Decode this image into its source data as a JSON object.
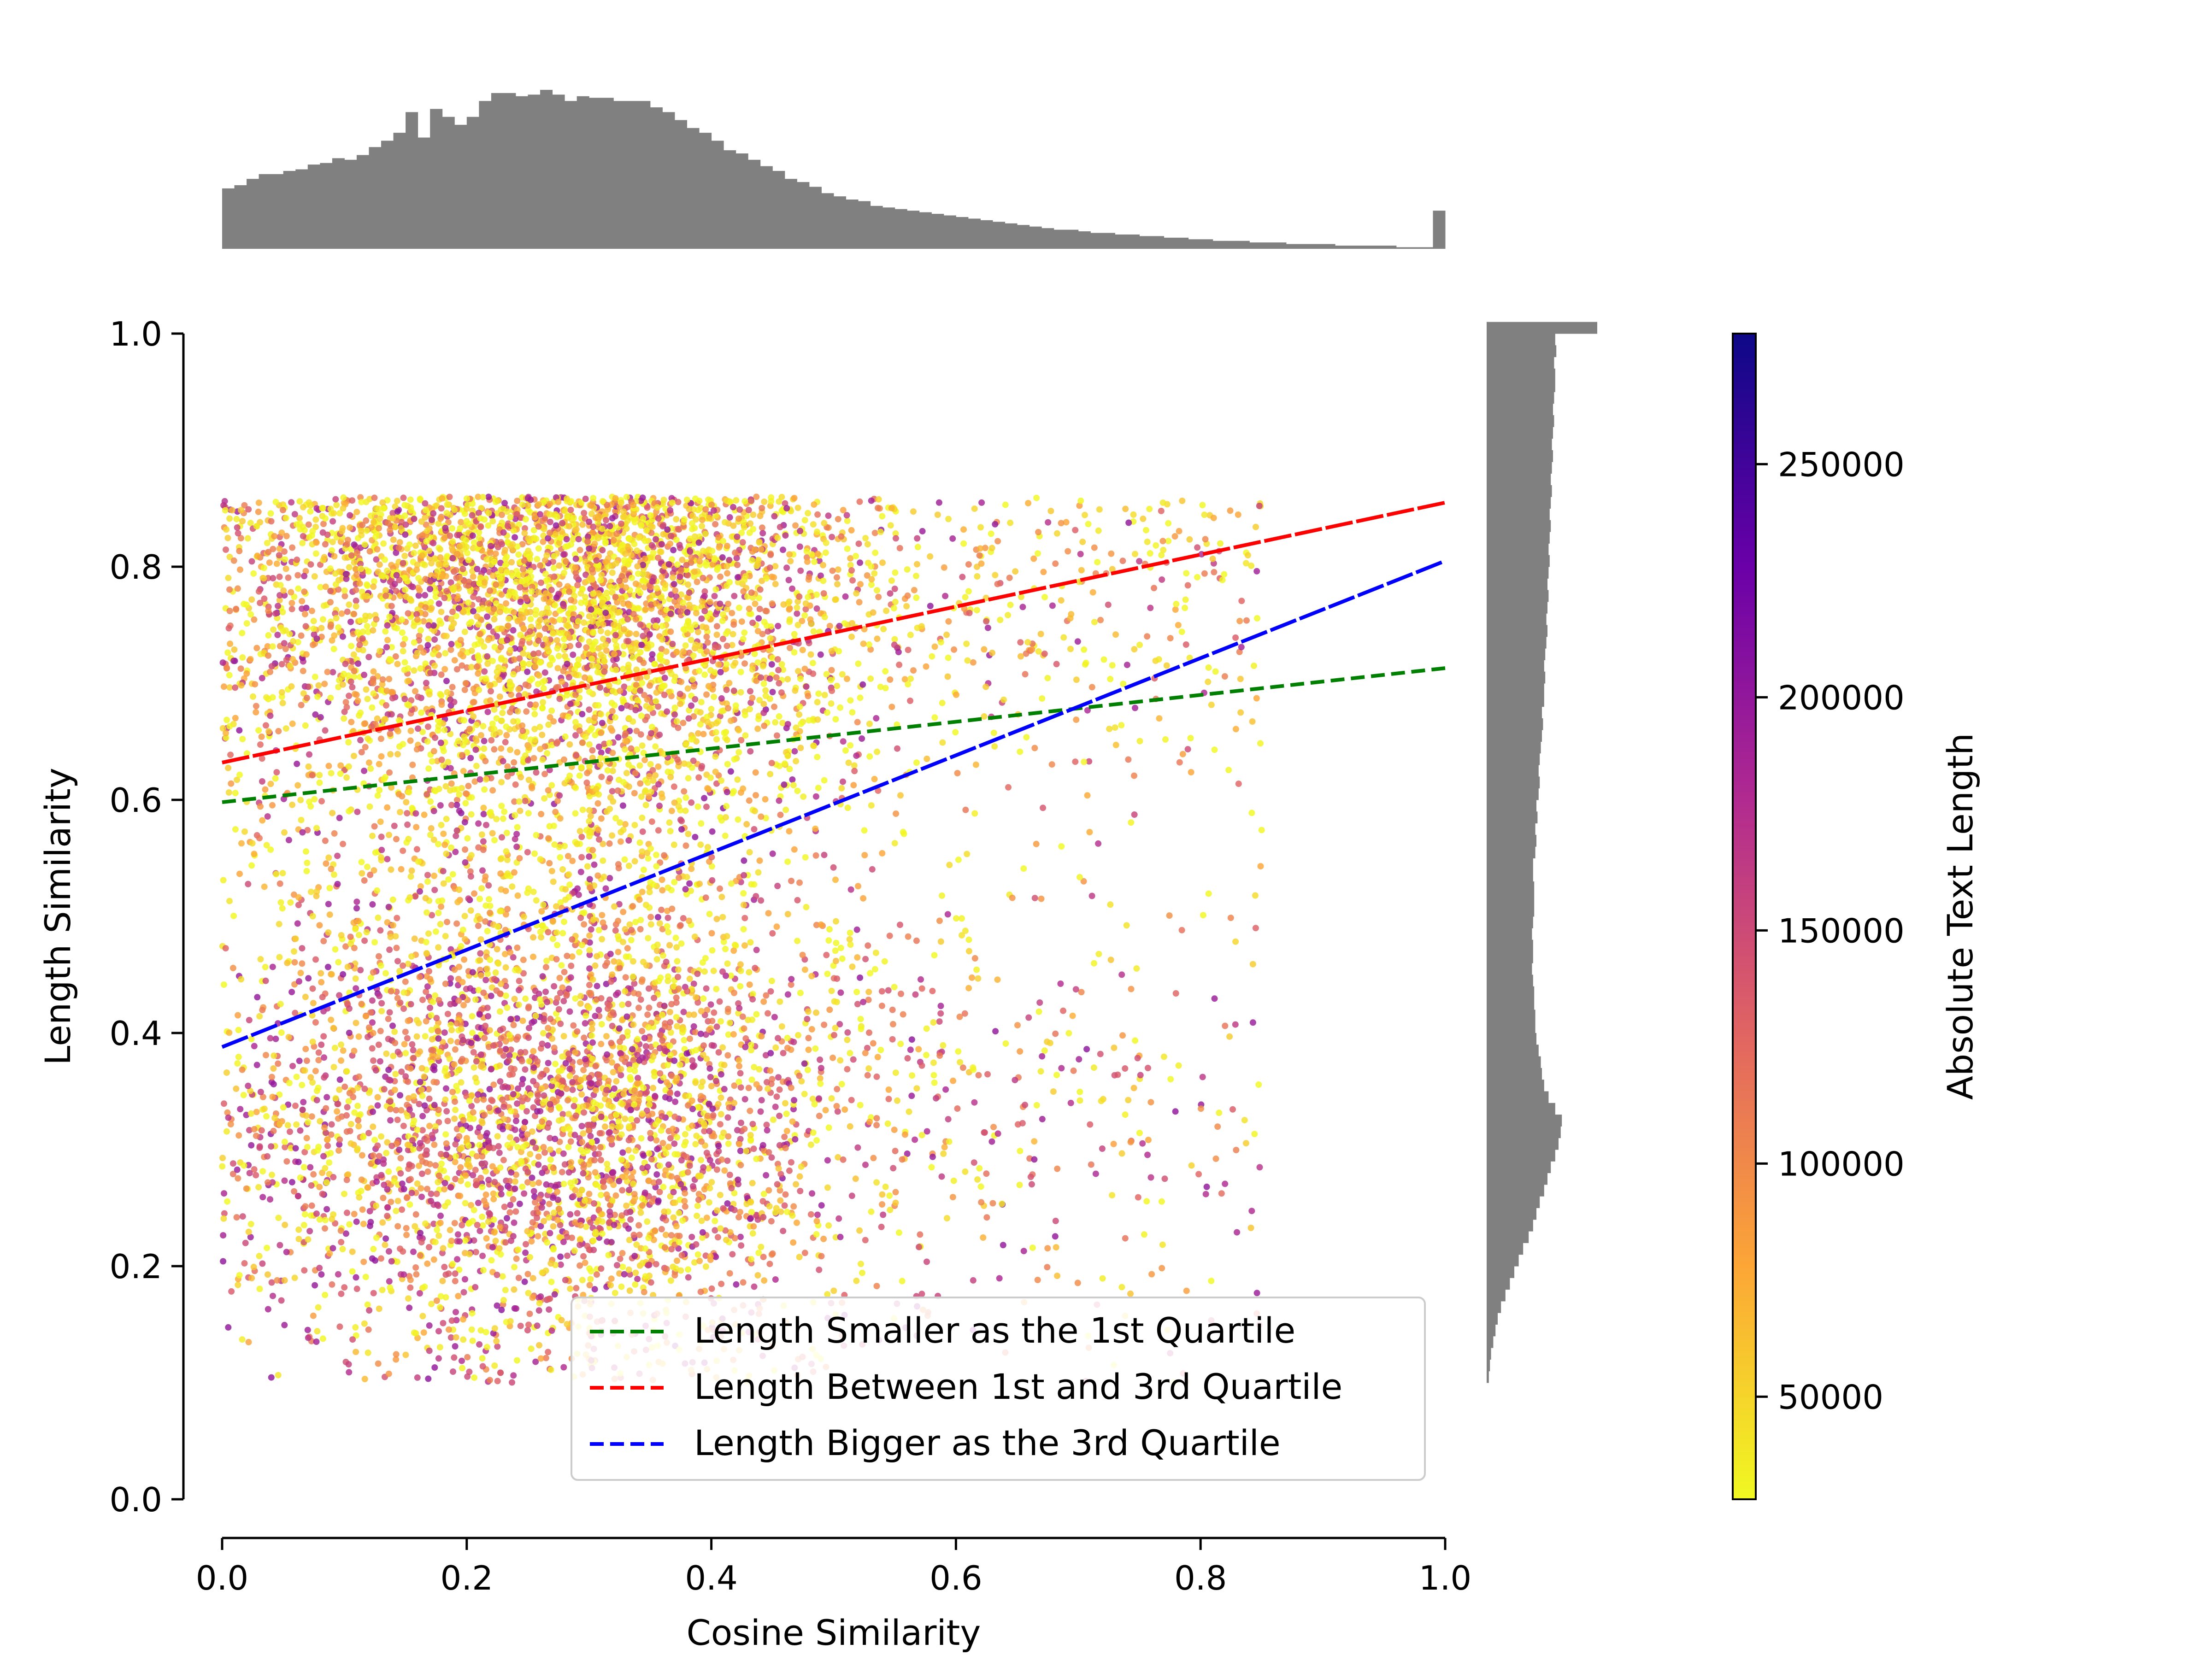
{
  "chart_data": {
    "type": "scatter",
    "title": "",
    "xlabel": "Cosine Similarity",
    "ylabel": "Length Similarity",
    "xlim": [
      0.0,
      1.0
    ],
    "ylim": [
      0.0,
      1.0
    ],
    "xticks": [
      0.0,
      0.2,
      0.4,
      0.6,
      0.8,
      1.0
    ],
    "yticks": [
      0.0,
      0.2,
      0.4,
      0.6,
      0.8,
      1.0
    ],
    "x_tick_labels": [
      "0.0",
      "0.2",
      "0.4",
      "0.6",
      "0.8",
      "1.0"
    ],
    "y_tick_labels": [
      "0.0",
      "0.2",
      "0.4",
      "0.6",
      "0.8",
      "1.0"
    ],
    "grid": false,
    "legend_position": "bottom-center",
    "scatter": {
      "n_points": 9000,
      "color_variable": "Absolute Text Length",
      "colormap": "plasma_r",
      "density_peak_x": 0.25,
      "density_modes_y": [
        0.3,
        0.85
      ],
      "note_source": "approximated from image"
    },
    "series": [
      {
        "name": "Length Smaller as the 1st Quartile",
        "color": "#008000",
        "x": [
          0.0,
          1.0
        ],
        "y": [
          0.598,
          0.713
        ]
      },
      {
        "name": "Length Between 1st and 3rd Quartile",
        "color": "#ff0000",
        "x": [
          0.0,
          1.0
        ],
        "y": [
          0.632,
          0.855
        ]
      },
      {
        "name": "Length Bigger as the 3rd Quartile",
        "color": "#0000ff",
        "x": [
          0.0,
          1.0
        ],
        "y": [
          0.388,
          0.805
        ]
      }
    ],
    "colorbar": {
      "label": "Absolute Text Length",
      "min": 28000,
      "max": 278000,
      "ticks": [
        50000,
        100000,
        150000,
        200000,
        250000
      ],
      "tick_labels": [
        "50000",
        "100000",
        "150000",
        "200000",
        "250000"
      ],
      "colors": [
        "#f0f921",
        "#fca636",
        "#e16462",
        "#b12a90",
        "#6a00a8",
        "#0d0887"
      ]
    },
    "top_histogram": {
      "bin_start": 0.0,
      "bin_width": 0.01,
      "relative_heights": [
        0.38,
        0.4,
        0.44,
        0.47,
        0.47,
        0.49,
        0.5,
        0.53,
        0.54,
        0.57,
        0.56,
        0.59,
        0.64,
        0.68,
        0.73,
        0.86,
        0.7,
        0.88,
        0.83,
        0.78,
        0.83,
        0.93,
        0.98,
        0.98,
        0.96,
        0.97,
        1.0,
        0.97,
        0.93,
        0.96,
        0.95,
        0.95,
        0.93,
        0.93,
        0.93,
        0.89,
        0.86,
        0.81,
        0.76,
        0.73,
        0.68,
        0.62,
        0.6,
        0.56,
        0.52,
        0.49,
        0.44,
        0.42,
        0.39,
        0.35,
        0.33,
        0.31,
        0.3,
        0.27,
        0.26,
        0.25,
        0.24,
        0.23,
        0.22,
        0.21,
        0.2,
        0.19,
        0.18,
        0.17,
        0.16,
        0.15,
        0.14,
        0.13,
        0.12,
        0.12,
        0.11,
        0.1,
        0.1,
        0.09,
        0.09,
        0.08,
        0.08,
        0.07,
        0.07,
        0.06,
        0.06,
        0.05,
        0.05,
        0.05,
        0.04,
        0.04,
        0.04,
        0.03,
        0.03,
        0.03,
        0.03,
        0.02,
        0.02,
        0.02,
        0.02,
        0.02,
        0.01,
        0.01,
        0.01,
        0.24
      ],
      "color": "#808080"
    },
    "right_histogram": {
      "bin_start": 0.1,
      "bin_width": 0.01,
      "relative_heights": [
        0.02,
        0.03,
        0.04,
        0.06,
        0.08,
        0.1,
        0.13,
        0.17,
        0.21,
        0.25,
        0.29,
        0.33,
        0.38,
        0.42,
        0.45,
        0.48,
        0.52,
        0.55,
        0.58,
        0.62,
        0.65,
        0.67,
        0.68,
        0.62,
        0.56,
        0.52,
        0.5,
        0.49,
        0.47,
        0.45,
        0.44,
        0.44,
        0.43,
        0.43,
        0.42,
        0.41,
        0.42,
        0.42,
        0.41,
        0.42,
        0.43,
        0.43,
        0.43,
        0.42,
        0.42,
        0.44,
        0.45,
        0.44,
        0.46,
        0.45,
        0.47,
        0.48,
        0.47,
        0.48,
        0.49,
        0.5,
        0.51,
        0.5,
        0.52,
        0.52,
        0.53,
        0.52,
        0.53,
        0.54,
        0.55,
        0.54,
        0.55,
        0.56,
        0.55,
        0.56,
        0.57,
        0.56,
        0.57,
        0.58,
        0.57,
        0.58,
        0.59,
        0.58,
        0.59,
        0.6,
        0.59,
        0.6,
        0.61,
        0.6,
        0.61,
        0.62,
        0.62,
        0.61,
        0.63,
        0.62,
        1.0
      ],
      "color": "#808080"
    }
  }
}
